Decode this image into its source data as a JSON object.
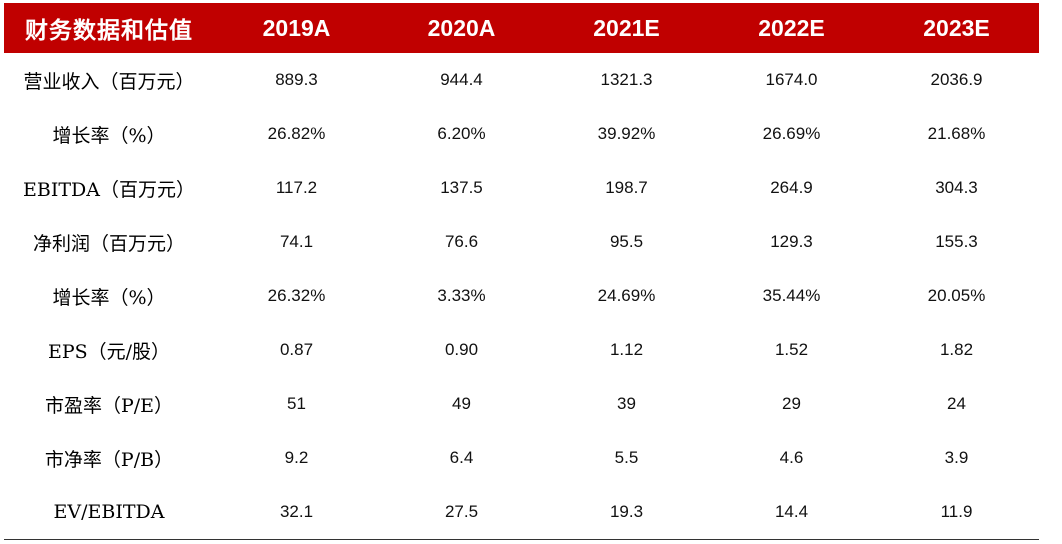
{
  "table": {
    "header": {
      "label": "财务数据和估值",
      "years": [
        "2019A",
        "2020A",
        "2021E",
        "2022E",
        "2023E"
      ]
    },
    "rows": [
      {
        "label": "营业收入（百万元）",
        "values": [
          "889.3",
          "944.4",
          "1321.3",
          "1674.0",
          "2036.9"
        ]
      },
      {
        "label": "增长率（%）",
        "values": [
          "26.82%",
          "6.20%",
          "39.92%",
          "26.69%",
          "21.68%"
        ]
      },
      {
        "label": "EBITDA（百万元）",
        "values": [
          "117.2",
          "137.5",
          "198.7",
          "264.9",
          "304.3"
        ]
      },
      {
        "label": "净利润（百万元）",
        "values": [
          "74.1",
          "76.6",
          "95.5",
          "129.3",
          "155.3"
        ]
      },
      {
        "label": "增长率（%）",
        "values": [
          "26.32%",
          "3.33%",
          "24.69%",
          "35.44%",
          "20.05%"
        ]
      },
      {
        "label": "EPS（元/股）",
        "values": [
          "0.87",
          "0.90",
          "1.12",
          "1.52",
          "1.82"
        ]
      },
      {
        "label": "市盈率（P/E）",
        "values": [
          "51",
          "49",
          "39",
          "29",
          "24"
        ]
      },
      {
        "label": "市净率（P/B）",
        "values": [
          "9.2",
          "6.4",
          "5.5",
          "4.6",
          "3.9"
        ]
      },
      {
        "label": "EV/EBITDA",
        "values": [
          "32.1",
          "27.5",
          "19.3",
          "14.4",
          "11.9"
        ]
      }
    ]
  },
  "colors": {
    "header_bg": "#c00000",
    "header_text": "#ffffff",
    "body_text": "#111111",
    "rule": "#333333"
  }
}
